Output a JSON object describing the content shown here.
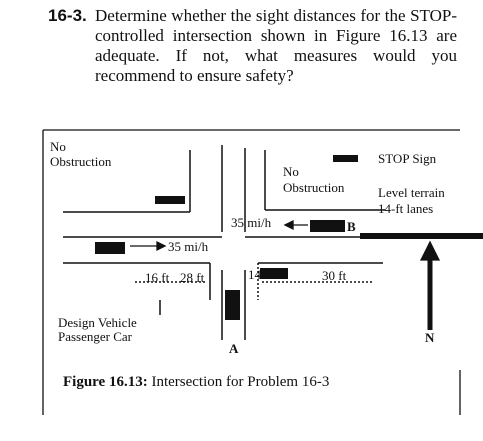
{
  "problem": {
    "number": "16-3.",
    "text": "Determine whether the sight distances for the STOP-controlled intersection shown in Figure 16.13 are adequate. If not, what measures would you recommend to ensure safety?"
  },
  "figure": {
    "obstruction_left": [
      "No",
      "Obstruction"
    ],
    "obstruction_mid": [
      "No",
      "Obstruction"
    ],
    "stop_sign": "STOP Sign",
    "terrain": [
      "Level terrain",
      "14-ft lanes"
    ],
    "speed_major": "35 mi/h",
    "speed_minor": "35 mi/h",
    "vehicle_b": "B",
    "vehicle_a": "A",
    "dim_16": "16 ft",
    "dim_28": "28 ft",
    "dim_14": "14",
    "dim_30": "30 ft",
    "design_vehicle": [
      "Design Vehicle",
      "Passenger Car"
    ],
    "north": "N"
  },
  "caption": {
    "label": "Figure 16.13:",
    "text": "Intersection for Problem 16-3"
  }
}
